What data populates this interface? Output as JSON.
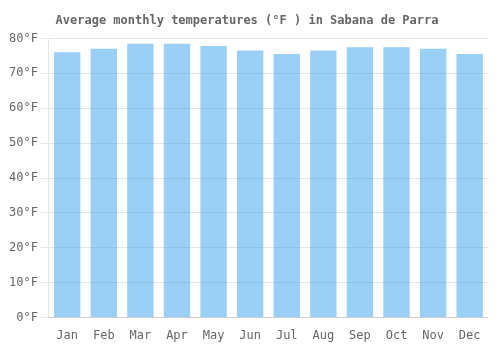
{
  "chart_data": {
    "type": "bar",
    "title": "Average monthly temperatures (°F ) in Sabana de Parra",
    "categories": [
      "Jan",
      "Feb",
      "Mar",
      "Apr",
      "May",
      "Jun",
      "Jul",
      "Aug",
      "Sep",
      "Oct",
      "Nov",
      "Dec"
    ],
    "values": [
      76.0,
      77.0,
      78.5,
      78.5,
      77.8,
      76.5,
      75.5,
      76.5,
      77.5,
      77.5,
      77.0,
      75.5
    ],
    "ylim": [
      0,
      80
    ],
    "yticks": [
      {
        "value": 0,
        "label": "0°F"
      },
      {
        "value": 10,
        "label": "10°F"
      },
      {
        "value": 20,
        "label": "20°F"
      },
      {
        "value": 30,
        "label": "30°F"
      },
      {
        "value": 40,
        "label": "40°F"
      },
      {
        "value": 50,
        "label": "50°F"
      },
      {
        "value": 60,
        "label": "60°F"
      },
      {
        "value": 70,
        "label": "70°F"
      },
      {
        "value": 80,
        "label": "80°F"
      }
    ],
    "grid": "y"
  }
}
